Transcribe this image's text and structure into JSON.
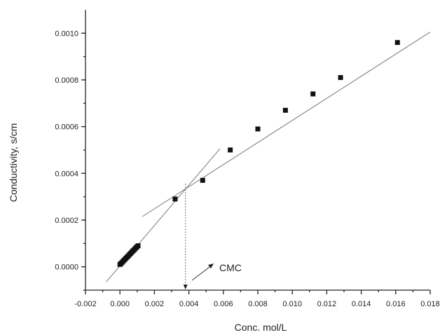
{
  "chart_data": {
    "type": "scatter",
    "xlabel": "Conc. mol/L",
    "ylabel": "Conductivity, s/cm",
    "xlim": [
      -0.002,
      0.018
    ],
    "ylim": [
      -0.0001,
      0.0011
    ],
    "x_ticks": [
      -0.002,
      0.0,
      0.002,
      0.004,
      0.006,
      0.008,
      0.01,
      0.012,
      0.014,
      0.016,
      0.018
    ],
    "x_tick_labels": [
      "-0.002",
      "0.000",
      "0.002",
      "0.004",
      "0.006",
      "0.008",
      "0.010",
      "0.012",
      "0.014",
      "0.016",
      "0.018"
    ],
    "y_ticks": [
      0.0,
      0.0002,
      0.0004,
      0.0006,
      0.0008,
      0.001
    ],
    "y_tick_labels": [
      "0.0000",
      "0.0002",
      "0.0004",
      "0.0006",
      "0.0008",
      "0.0010"
    ],
    "grid": false,
    "series": [
      {
        "marker": "square",
        "color": "#111111",
        "points": [
          [
            0.0,
            1e-05
          ],
          [
            7e-05,
            1.5e-05
          ],
          [
            0.00014,
            2e-05
          ],
          [
            0.00021,
            2.6e-05
          ],
          [
            0.00028,
            3.1e-05
          ],
          [
            0.00035,
            3.7e-05
          ],
          [
            0.00042,
            4.2e-05
          ],
          [
            0.00049,
            4.7e-05
          ],
          [
            0.00056,
            5.3e-05
          ],
          [
            0.00063,
            5.8e-05
          ],
          [
            0.0007,
            6.4e-05
          ],
          [
            0.00077,
            6.9e-05
          ],
          [
            0.00084,
            7.4e-05
          ],
          [
            0.00091,
            8e-05
          ],
          [
            0.00098,
            8.5e-05
          ],
          [
            0.00105,
            9e-05
          ],
          [
            0.0032,
            0.00029
          ],
          [
            0.0048,
            0.00037
          ],
          [
            0.0064,
            0.0005
          ],
          [
            0.008,
            0.00059
          ],
          [
            0.0096,
            0.00067
          ],
          [
            0.0112,
            0.00074
          ],
          [
            0.0128,
            0.00081
          ],
          [
            0.0161,
            0.00096
          ]
        ]
      }
    ],
    "fit_lines": [
      {
        "x": [
          -0.0008,
          0.0058
        ],
        "y": [
          -6.5e-05,
          0.000505
        ],
        "color": "#777777"
      },
      {
        "x": [
          0.0013,
          0.018
        ],
        "y": [
          0.000215,
          0.001005
        ],
        "color": "#777777"
      }
    ],
    "cmc": {
      "x": 0.0038,
      "y": 0.000355,
      "label": "CMC"
    }
  }
}
